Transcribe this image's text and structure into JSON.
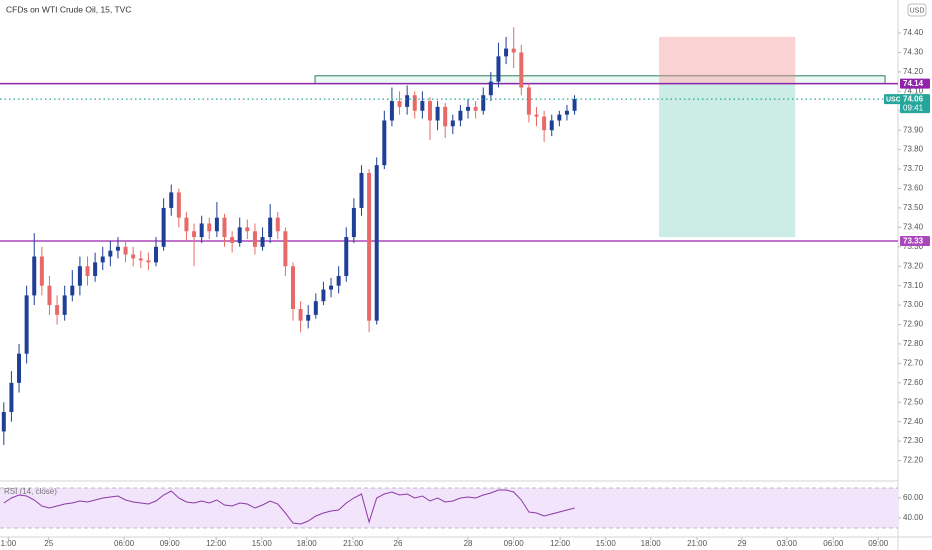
{
  "chart_data": {
    "type": "candlestick",
    "title": "CFDs on WTI Crude Oil, 15, TVC",
    "currency": "USD",
    "up_color": "#1f3f96",
    "down_color": "#e86a68",
    "open": [
      72.35,
      72.45,
      72.6,
      72.75,
      73.05,
      73.25,
      73.1,
      73.0,
      72.95,
      73.05,
      73.1,
      73.2,
      73.15,
      73.22,
      73.25,
      73.28,
      73.3,
      73.26,
      73.24,
      73.23,
      73.22,
      73.3,
      73.5,
      73.58,
      73.45,
      73.38,
      73.35,
      73.42,
      73.38,
      73.45,
      73.35,
      73.32,
      73.4,
      73.38,
      73.3,
      73.35,
      73.45,
      73.38,
      73.2,
      72.98,
      72.92,
      72.95,
      73.02,
      73.08,
      73.1,
      73.15,
      73.35,
      73.5,
      73.68,
      72.92,
      73.72,
      73.95,
      74.05,
      74.02,
      74.08,
      74.0,
      74.05,
      73.95,
      74.02,
      73.92,
      73.95,
      74.0,
      74.02,
      74.0,
      74.08,
      74.15,
      74.28,
      74.32,
      74.3,
      74.12,
      73.98,
      73.97,
      73.9,
      73.95,
      73.98,
      74.0
    ],
    "high": [
      72.5,
      72.66,
      72.8,
      73.1,
      73.37,
      73.3,
      73.15,
      73.05,
      73.1,
      73.18,
      73.25,
      73.25,
      73.27,
      73.3,
      73.33,
      73.35,
      73.33,
      73.3,
      73.28,
      73.27,
      73.35,
      73.55,
      73.62,
      73.6,
      73.48,
      73.42,
      73.46,
      73.45,
      73.53,
      73.47,
      73.38,
      73.45,
      73.44,
      73.42,
      73.4,
      73.52,
      73.48,
      73.4,
      73.22,
      73.02,
      73.0,
      73.06,
      73.12,
      73.14,
      73.2,
      73.4,
      73.55,
      73.72,
      73.7,
      73.76,
      74.0,
      74.12,
      74.1,
      74.13,
      74.1,
      74.1,
      74.07,
      74.05,
      74.04,
      73.98,
      74.03,
      74.06,
      74.05,
      74.12,
      74.2,
      74.35,
      74.38,
      74.43,
      74.34,
      74.14,
      74.02,
      74.0,
      73.98,
      74.0,
      74.03,
      74.08
    ],
    "low": [
      72.28,
      72.4,
      72.55,
      72.7,
      73.0,
      73.05,
      72.95,
      72.9,
      72.92,
      73.02,
      73.05,
      73.1,
      73.12,
      73.18,
      73.2,
      73.24,
      73.22,
      73.2,
      73.19,
      73.18,
      73.2,
      73.28,
      73.46,
      73.4,
      73.33,
      73.2,
      73.32,
      73.34,
      73.35,
      73.3,
      73.27,
      73.3,
      73.34,
      73.26,
      73.28,
      73.32,
      73.34,
      73.15,
      72.92,
      72.86,
      72.88,
      72.93,
      73.0,
      73.04,
      73.06,
      73.12,
      73.32,
      73.46,
      72.86,
      72.9,
      73.7,
      73.92,
      73.98,
      73.98,
      73.96,
      73.96,
      73.85,
      73.9,
      73.86,
      73.88,
      73.92,
      73.96,
      73.96,
      73.98,
      74.05,
      74.12,
      74.24,
      74.22,
      74.08,
      73.94,
      73.92,
      73.84,
      73.87,
      73.92,
      73.95,
      73.98
    ],
    "close": [
      72.45,
      72.6,
      72.75,
      73.05,
      73.25,
      73.1,
      73.0,
      72.95,
      73.05,
      73.1,
      73.2,
      73.15,
      73.22,
      73.25,
      73.28,
      73.3,
      73.26,
      73.24,
      73.23,
      73.22,
      73.3,
      73.5,
      73.58,
      73.45,
      73.38,
      73.35,
      73.42,
      73.38,
      73.45,
      73.35,
      73.32,
      73.4,
      73.38,
      73.3,
      73.35,
      73.45,
      73.38,
      73.2,
      72.98,
      72.92,
      72.95,
      73.02,
      73.08,
      73.1,
      73.15,
      73.35,
      73.5,
      73.68,
      72.92,
      73.72,
      73.95,
      74.05,
      74.02,
      74.08,
      74.0,
      74.05,
      73.95,
      74.02,
      73.92,
      73.95,
      74.0,
      74.02,
      74.0,
      74.08,
      74.15,
      74.28,
      74.32,
      74.3,
      74.12,
      73.98,
      73.97,
      73.9,
      73.95,
      73.98,
      74.0,
      74.06
    ],
    "xlim": [
      0,
      118
    ],
    "xticks": [
      {
        "value": 1.1,
        "label": "1:00"
      },
      {
        "value": 6.4,
        "label": "25"
      },
      {
        "value": 16.3,
        "label": "06:00"
      },
      {
        "value": 22.3,
        "label": "09:00"
      },
      {
        "value": 28.4,
        "label": "12:00"
      },
      {
        "value": 34.4,
        "label": "15:00"
      },
      {
        "value": 40.3,
        "label": "18:00"
      },
      {
        "value": 46.4,
        "label": "21:00"
      },
      {
        "value": 52.3,
        "label": "26"
      },
      {
        "value": 61.5,
        "label": "28"
      },
      {
        "value": 67.5,
        "label": "09:00"
      },
      {
        "value": 73.6,
        "label": "12:00"
      },
      {
        "value": 79.6,
        "label": "15:00"
      },
      {
        "value": 85.5,
        "label": "18:00"
      },
      {
        "value": 91.6,
        "label": "21:00"
      },
      {
        "value": 97.5,
        "label": "29"
      },
      {
        "value": 103.4,
        "label": "03:00"
      },
      {
        "value": 109.5,
        "label": "06:00"
      },
      {
        "value": 115.4,
        "label": "09:00"
      }
    ],
    "ylim": [
      72.1,
      74.57
    ],
    "yticks": [
      {
        "value": 72.2,
        "label": "72.20"
      },
      {
        "value": 72.3,
        "label": "72.30"
      },
      {
        "value": 72.4,
        "label": "72.40"
      },
      {
        "value": 72.5,
        "label": "72.50"
      },
      {
        "value": 72.6,
        "label": "72.60"
      },
      {
        "value": 72.7,
        "label": "72.70"
      },
      {
        "value": 72.8,
        "label": "72.80"
      },
      {
        "value": 72.9,
        "label": "72.90"
      },
      {
        "value": 73.0,
        "label": "73.00"
      },
      {
        "value": 73.1,
        "label": "73.10"
      },
      {
        "value": 73.2,
        "label": "73.20"
      },
      {
        "value": 73.3,
        "label": "73.30"
      },
      {
        "value": 73.4,
        "label": "73.40"
      },
      {
        "value": 73.5,
        "label": "73.50"
      },
      {
        "value": 73.6,
        "label": "73.60"
      },
      {
        "value": 73.7,
        "label": "73.70"
      },
      {
        "value": 73.8,
        "label": "73.80"
      },
      {
        "value": 73.9,
        "label": "73.90"
      },
      {
        "value": 74.0,
        "label": "74.00"
      },
      {
        "value": 74.1,
        "label": "74.10"
      },
      {
        "value": 74.2,
        "label": "74.20"
      },
      {
        "value": 74.3,
        "label": "74.30"
      },
      {
        "value": 74.4,
        "label": "74.40"
      }
    ],
    "levels": [
      {
        "value": 74.14,
        "color": "#8e24aa"
      },
      {
        "value": 73.33,
        "color": "#ab47bc"
      }
    ],
    "zone": {
      "xlim": [
        41.4,
        116.3
      ],
      "ylim": [
        74.14,
        74.18
      ],
      "color": "#2e7d5b"
    },
    "position": {
      "xlim": [
        86.6,
        104.5
      ],
      "entry": 74.14,
      "stop": 74.38,
      "target": 73.35
    },
    "last": {
      "symbol": "USOIL",
      "value": 74.06,
      "countdown": "09:41",
      "color": "#26a69a"
    },
    "rsi": {
      "label": "RSI (14, close)",
      "color": "#8e3aa6",
      "ylim": [
        23,
        73
      ],
      "band": [
        30,
        70
      ],
      "yticks": [
        {
          "value": 60,
          "label": "60.00"
        },
        {
          "value": 40,
          "label": "40.00"
        }
      ],
      "values": [
        55,
        60,
        63,
        62,
        58,
        52,
        50,
        52,
        54,
        55,
        57,
        56,
        58,
        60,
        61,
        62,
        58,
        56,
        55,
        54,
        57,
        63,
        67,
        60,
        56,
        55,
        57,
        55,
        58,
        53,
        52,
        55,
        54,
        50,
        53,
        57,
        54,
        45,
        35,
        34,
        37,
        42,
        45,
        47,
        48,
        55,
        60,
        64,
        36,
        60,
        64,
        66,
        63,
        64,
        60,
        62,
        57,
        60,
        56,
        57,
        60,
        61,
        60,
        63,
        65,
        68,
        68,
        66,
        58,
        46,
        45,
        42,
        44,
        46,
        48,
        50
      ]
    }
  }
}
